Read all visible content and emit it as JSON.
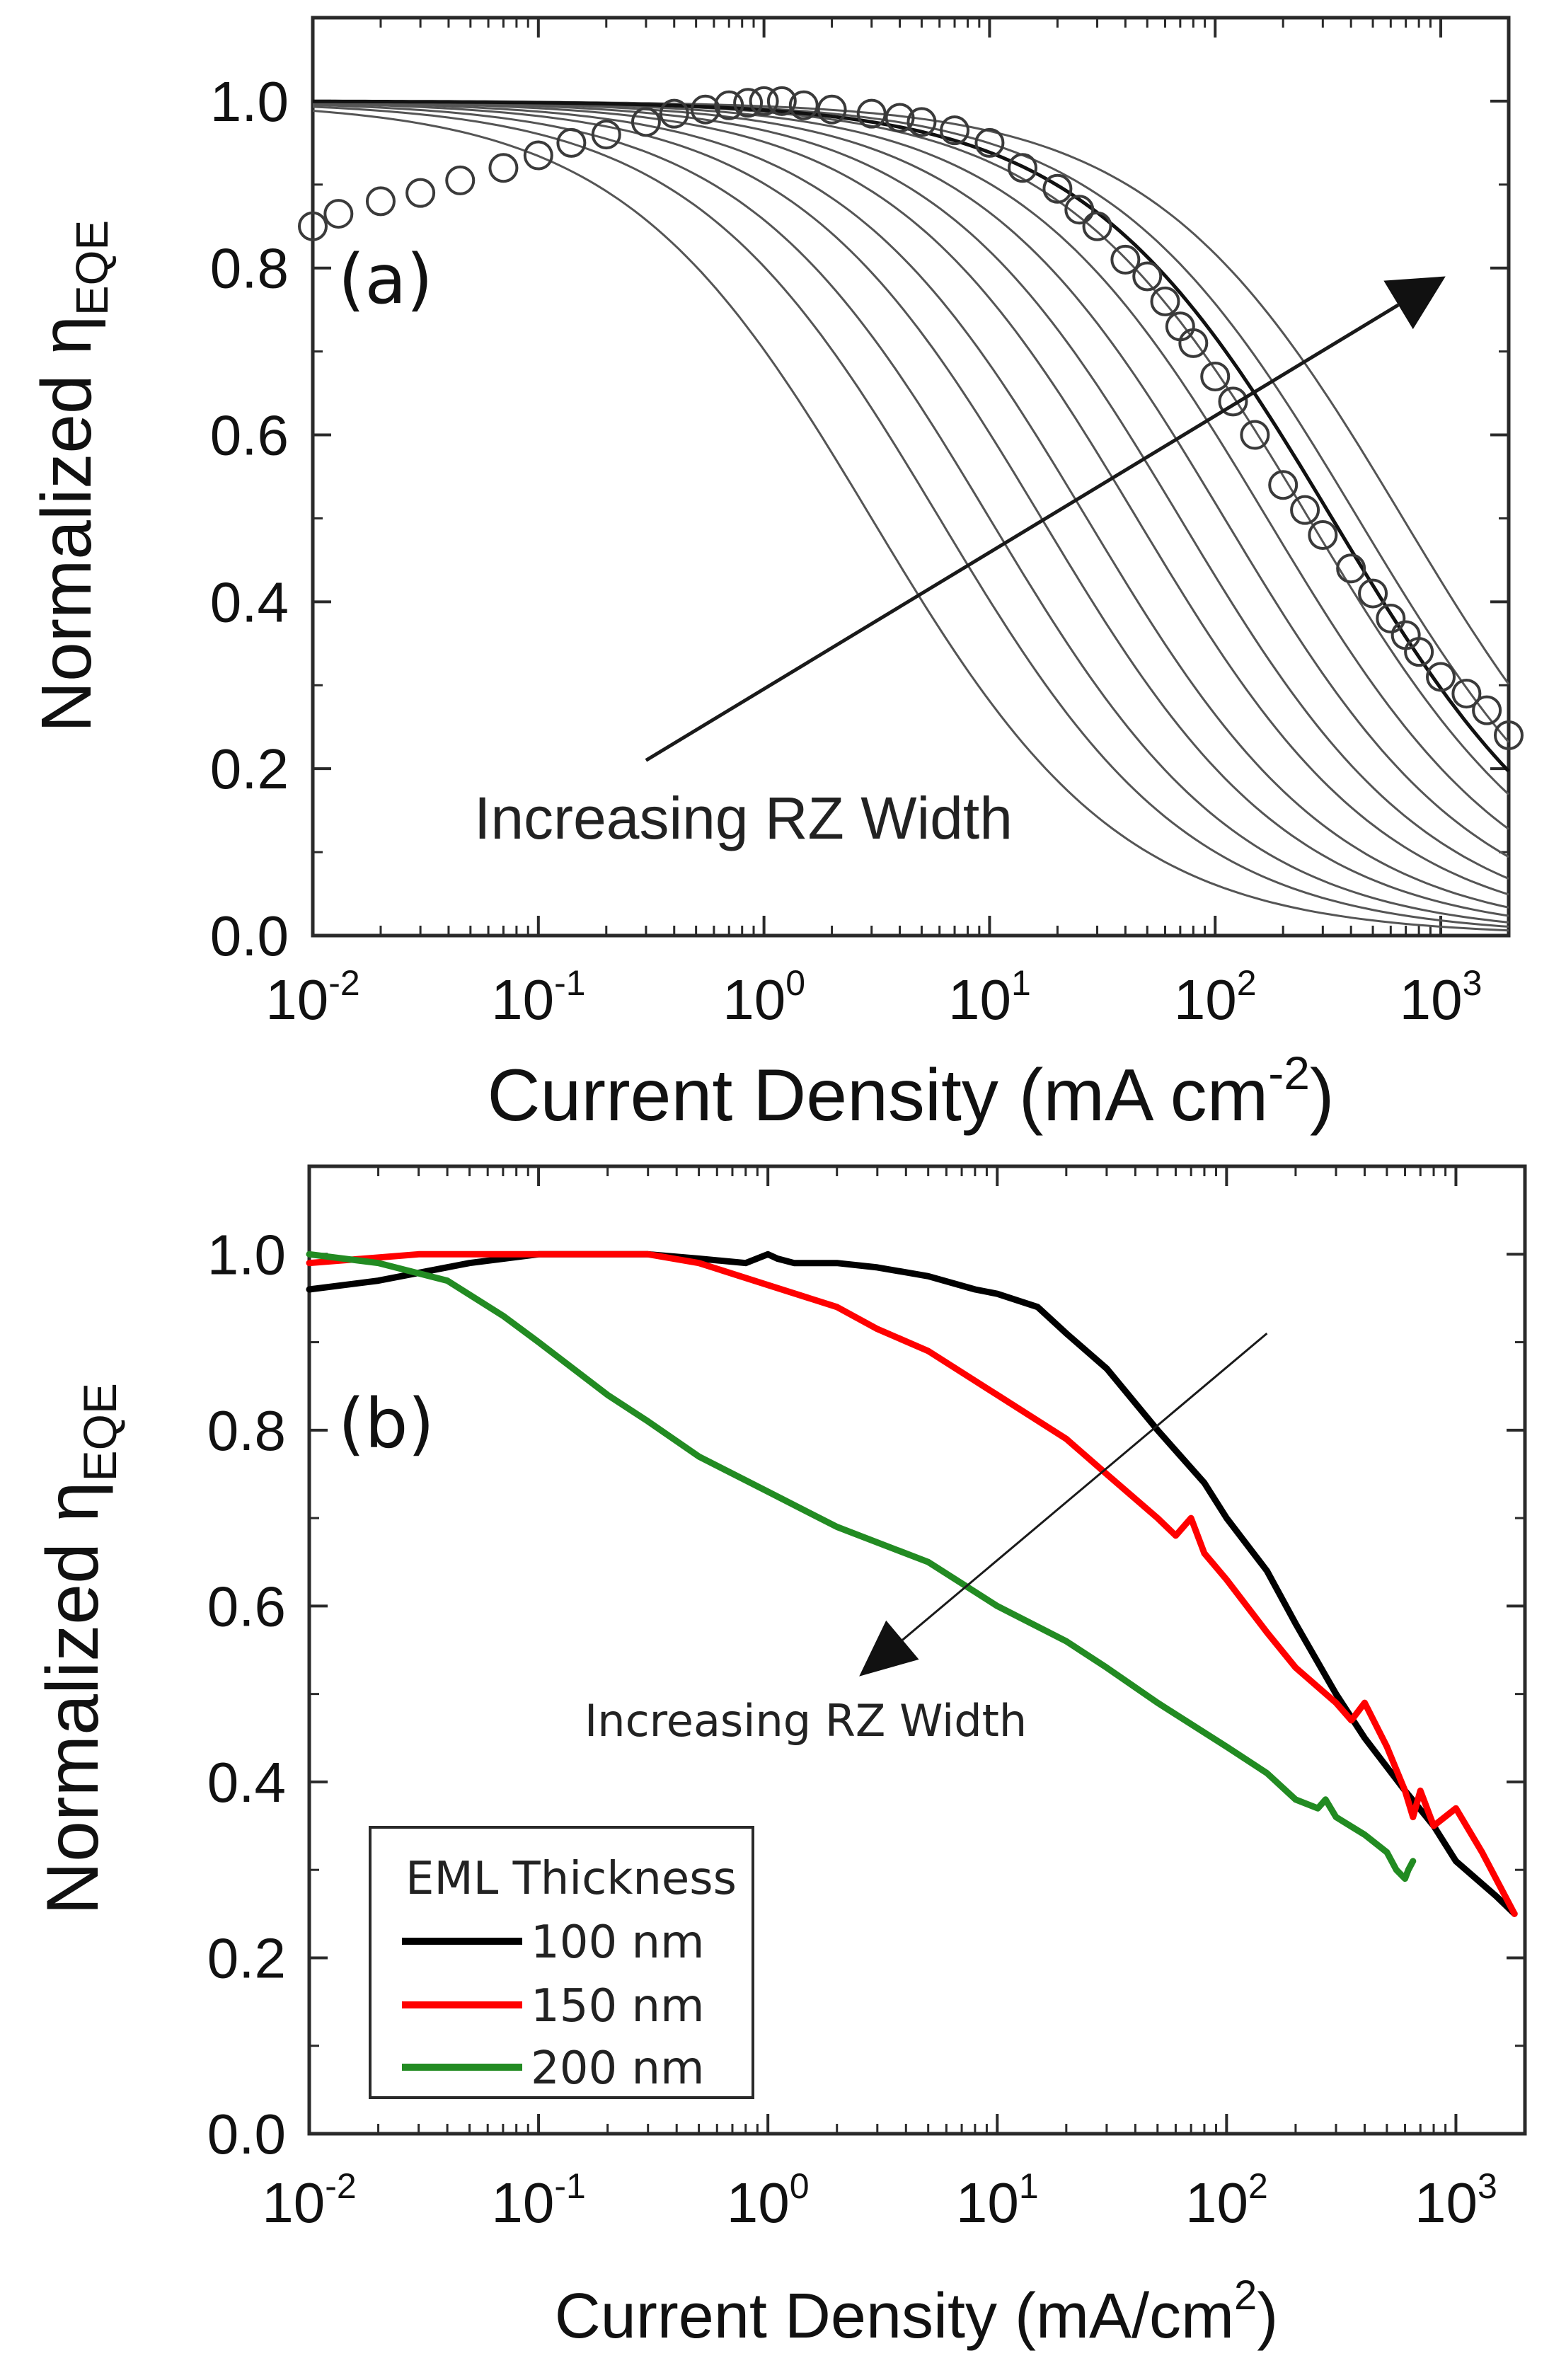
{
  "chart_data": [
    {
      "type": "line",
      "panel_label": "(a)",
      "xlabel": "Current Density (mA cm",
      "xlabel_sup": "-2",
      "xlabel_end": ")",
      "ylabel": "Normalized η",
      "ylabel_sub": "EQE",
      "xscale": "log",
      "xlim": [
        0.01,
        2000
      ],
      "ylim": [
        0,
        1.1
      ],
      "x_ticks": [
        {
          "base": "10",
          "exp": "-2"
        },
        {
          "base": "10",
          "exp": "-1"
        },
        {
          "base": "10",
          "exp": "0"
        },
        {
          "base": "10",
          "exp": "1"
        },
        {
          "base": "10",
          "exp": "2"
        },
        {
          "base": "10",
          "exp": "3"
        }
      ],
      "y_ticks": [
        "0.0",
        "0.2",
        "0.4",
        "0.6",
        "0.8",
        "1.0"
      ],
      "annotation": "Increasing RZ Width",
      "arrow": {
        "from": [
          0.3,
          0.21
        ],
        "to": [
          1050,
          0.79
        ]
      },
      "model_curves_half_points": [
        3,
        6,
        10,
        17,
        27,
        45,
        70,
        110,
        170,
        260,
        430,
        680
      ],
      "model_color": "#555555",
      "fit_curve_half_point": 330,
      "fit_color": "#111111",
      "series": [
        {
          "marker": "open-circle",
          "x": [
            0.01,
            0.013,
            0.02,
            0.03,
            0.045,
            0.07,
            0.1,
            0.14,
            0.2,
            0.3,
            0.4,
            0.55,
            0.7,
            0.85,
            1.0,
            1.2,
            1.5,
            2,
            3,
            4,
            5,
            7,
            10,
            14,
            20,
            25,
            30,
            40,
            50,
            60,
            70,
            80,
            100,
            120,
            150,
            200,
            250,
            300,
            400,
            500,
            600,
            700,
            800,
            1000,
            1300,
            1600,
            2000
          ],
          "y": [
            0.85,
            0.865,
            0.88,
            0.89,
            0.905,
            0.92,
            0.935,
            0.95,
            0.96,
            0.975,
            0.985,
            0.99,
            0.995,
            0.998,
            1.0,
            1.0,
            0.995,
            0.99,
            0.985,
            0.98,
            0.975,
            0.965,
            0.95,
            0.92,
            0.895,
            0.87,
            0.85,
            0.81,
            0.79,
            0.76,
            0.73,
            0.71,
            0.67,
            0.64,
            0.6,
            0.54,
            0.51,
            0.48,
            0.44,
            0.41,
            0.38,
            0.36,
            0.34,
            0.31,
            0.29,
            0.27,
            0.24
          ]
        }
      ]
    },
    {
      "type": "line",
      "panel_label": "(b)",
      "xlabel": "Current Density (mA/cm",
      "xlabel_sup": "2",
      "xlabel_end": ")",
      "ylabel": "Normalized η",
      "ylabel_sub": "EQE",
      "xscale": "log",
      "xlim": [
        0.01,
        2000
      ],
      "ylim": [
        0,
        1.1
      ],
      "x_ticks": [
        {
          "base": "10",
          "exp": "-2"
        },
        {
          "base": "10",
          "exp": "-1"
        },
        {
          "base": "10",
          "exp": "0"
        },
        {
          "base": "10",
          "exp": "1"
        },
        {
          "base": "10",
          "exp": "2"
        },
        {
          "base": "10",
          "exp": "3"
        }
      ],
      "y_ticks": [
        "0.0",
        "0.2",
        "0.4",
        "0.6",
        "0.8",
        "1.0"
      ],
      "annotation": "Increasing RZ Width",
      "arrow": {
        "from": [
          150,
          0.91
        ],
        "to": [
          2.5,
          0.52
        ]
      },
      "legend_title": "EML Thickness",
      "legend_position": "bottom-left",
      "series": [
        {
          "name": "100 nm",
          "color": "#000000",
          "x": [
            0.01,
            0.02,
            0.05,
            0.1,
            0.3,
            0.5,
            0.8,
            1.0,
            1.1,
            1.3,
            2,
            3,
            5,
            8,
            10,
            15,
            20,
            30,
            50,
            80,
            100,
            150,
            200,
            300,
            400,
            600,
            800,
            1000,
            1500,
            1800
          ],
          "y": [
            0.96,
            0.97,
            0.99,
            1.0,
            1.0,
            0.995,
            0.99,
            1.0,
            0.995,
            0.99,
            0.99,
            0.985,
            0.975,
            0.96,
            0.955,
            0.94,
            0.91,
            0.87,
            0.8,
            0.74,
            0.7,
            0.64,
            0.58,
            0.5,
            0.45,
            0.39,
            0.35,
            0.31,
            0.27,
            0.25
          ]
        },
        {
          "name": "150 nm",
          "color": "#ff0000",
          "x": [
            0.01,
            0.03,
            0.1,
            0.3,
            0.5,
            1.0,
            2,
            3,
            5,
            10,
            20,
            30,
            50,
            60,
            70,
            80,
            100,
            150,
            200,
            300,
            350,
            400,
            500,
            600,
            650,
            700,
            800,
            1000,
            1300,
            1800
          ],
          "y": [
            0.99,
            1.0,
            1.0,
            1.0,
            0.99,
            0.965,
            0.94,
            0.915,
            0.89,
            0.84,
            0.79,
            0.75,
            0.7,
            0.68,
            0.7,
            0.66,
            0.63,
            0.57,
            0.53,
            0.49,
            0.47,
            0.49,
            0.44,
            0.39,
            0.36,
            0.39,
            0.35,
            0.37,
            0.32,
            0.25
          ]
        },
        {
          "name": "200 nm",
          "color": "#228b22",
          "x": [
            0.01,
            0.02,
            0.04,
            0.07,
            0.1,
            0.2,
            0.3,
            0.5,
            1.0,
            2,
            5,
            10,
            20,
            30,
            50,
            100,
            150,
            200,
            250,
            270,
            300,
            400,
            500,
            550,
            600,
            620,
            650
          ],
          "y": [
            1.0,
            0.99,
            0.97,
            0.93,
            0.9,
            0.84,
            0.81,
            0.77,
            0.73,
            0.69,
            0.65,
            0.6,
            0.56,
            0.53,
            0.49,
            0.44,
            0.41,
            0.38,
            0.37,
            0.38,
            0.36,
            0.34,
            0.32,
            0.3,
            0.29,
            0.3,
            0.31
          ]
        }
      ]
    }
  ]
}
